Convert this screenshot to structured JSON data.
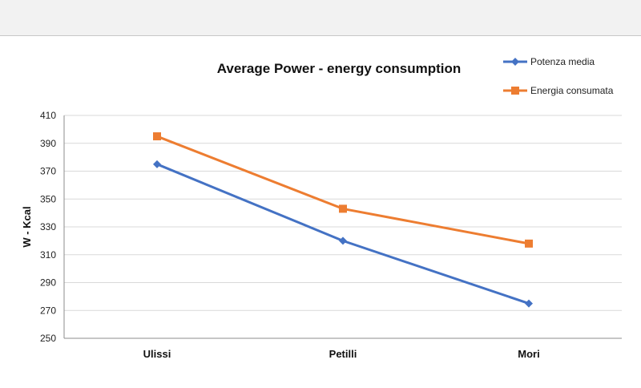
{
  "chart_data": {
    "type": "line",
    "title": "Average Power - energy consumption",
    "xlabel": "",
    "ylabel": "W - Kcal",
    "categories": [
      "Ulissi",
      "Petilli",
      "Mori"
    ],
    "ylim": [
      250,
      410
    ],
    "yticks": [
      "250",
      "270",
      "290",
      "310",
      "330",
      "350",
      "370",
      "390",
      "410"
    ],
    "grid": true,
    "legend_position": "top-right",
    "series": [
      {
        "name": "Potenza media",
        "values": [
          375,
          320,
          275
        ],
        "color": "#4472c4",
        "marker": "diamond"
      },
      {
        "name": "Energia consumata",
        "values": [
          395,
          343,
          318
        ],
        "color": "#ed7d31",
        "marker": "square"
      }
    ]
  }
}
